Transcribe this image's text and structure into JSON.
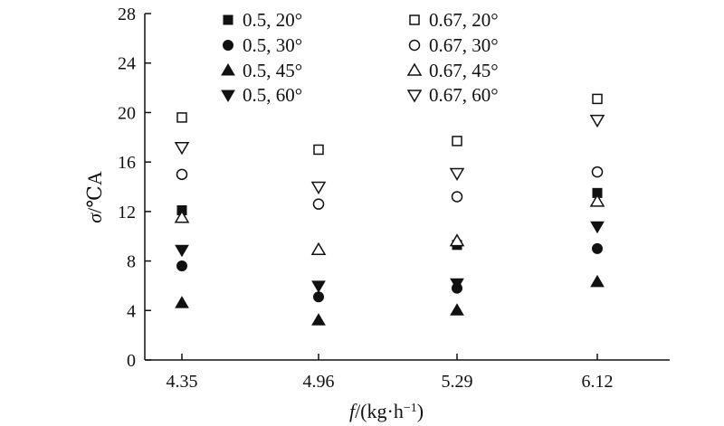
{
  "chart_data": {
    "type": "scatter",
    "categories": [
      "4.35",
      "4.96",
      "5.29",
      "6.12"
    ],
    "xlabel": {
      "var": "f",
      "rest": "/(kg·h",
      "sup": "−1",
      "close": ")"
    },
    "ylabel": {
      "var": "σ",
      "rest": "/℃A"
    },
    "ylim": [
      0,
      28
    ],
    "yticks": [
      "0",
      "4",
      "8",
      "12",
      "16",
      "20",
      "24",
      "28"
    ],
    "grid": false,
    "legend_position": "top",
    "series": [
      {
        "name": "0.5, 20°",
        "marker": "square",
        "filled": true,
        "values": [
          12.1,
          null,
          9.3,
          13.5
        ]
      },
      {
        "name": "0.5, 30°",
        "marker": "circle",
        "filled": true,
        "values": [
          7.6,
          5.1,
          5.8,
          9.0
        ]
      },
      {
        "name": "0.5, 45°",
        "marker": "triangle-up",
        "filled": true,
        "values": [
          4.6,
          3.2,
          4.0,
          6.3
        ]
      },
      {
        "name": "0.5, 60°",
        "marker": "triangle-down",
        "filled": true,
        "values": [
          8.9,
          6.0,
          6.2,
          10.8
        ]
      },
      {
        "name": "0.67, 20°",
        "marker": "square",
        "filled": false,
        "values": [
          19.6,
          17.0,
          17.7,
          21.1
        ]
      },
      {
        "name": "0.67, 30°",
        "marker": "circle",
        "filled": false,
        "values": [
          15.0,
          12.6,
          13.2,
          15.2
        ]
      },
      {
        "name": "0.67, 45°",
        "marker": "triangle-up",
        "filled": false,
        "values": [
          11.5,
          8.9,
          9.6,
          12.8
        ]
      },
      {
        "name": "0.67, 60°",
        "marker": "triangle-down",
        "filled": false,
        "values": [
          17.2,
          14.0,
          15.1,
          19.4
        ]
      }
    ]
  }
}
